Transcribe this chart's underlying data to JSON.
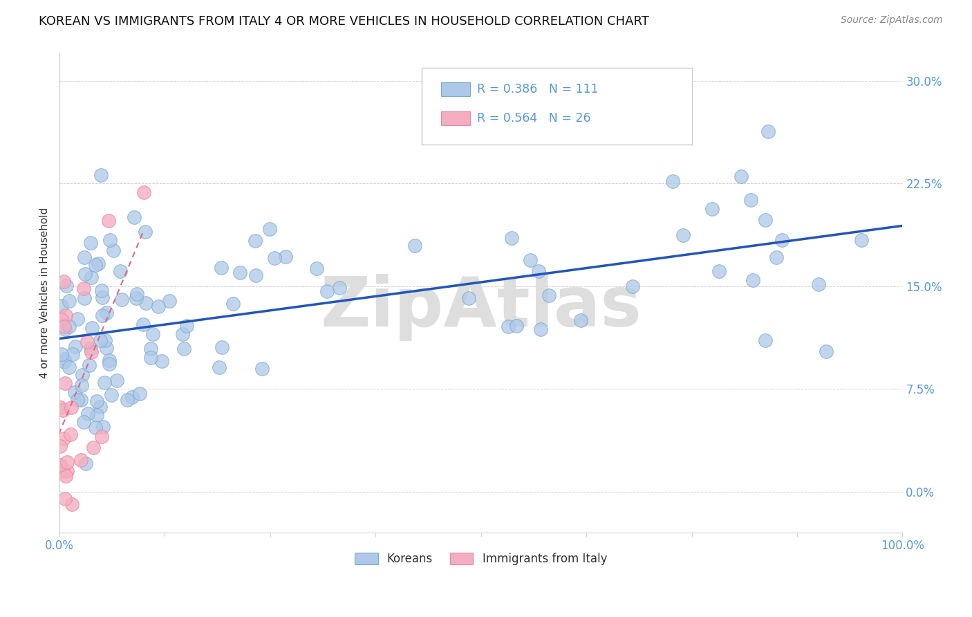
{
  "title": "KOREAN VS IMMIGRANTS FROM ITALY 4 OR MORE VEHICLES IN HOUSEHOLD CORRELATION CHART",
  "source": "Source: ZipAtlas.com",
  "ylabel": "4 or more Vehicles in Household",
  "xlim": [
    0,
    100
  ],
  "ylim": [
    -3,
    32
  ],
  "xticks": [
    0,
    100
  ],
  "xticklabels": [
    "0.0%",
    "100.0%"
  ],
  "yticks": [
    0,
    7.5,
    15.0,
    22.5,
    30.0
  ],
  "yticklabels": [
    "0.0%",
    "7.5%",
    "15.0%",
    "22.5%",
    "30.0%"
  ],
  "legend_labels": [
    "Koreans",
    "Immigrants from Italy"
  ],
  "korean_color": "#adc8e8",
  "italian_color": "#f5adc0",
  "korean_edge_color": "#7aaad0",
  "italian_edge_color": "#e888a8",
  "korean_line_color": "#2255bb",
  "italian_line_color": "#e06880",
  "korean_R": 0.386,
  "korean_N": 111,
  "italian_R": 0.564,
  "italian_N": 26,
  "watermark": "ZipAtlas",
  "background_color": "#ffffff",
  "title_fontsize": 13,
  "tick_color": "#5599dd",
  "source_color": "#888888"
}
